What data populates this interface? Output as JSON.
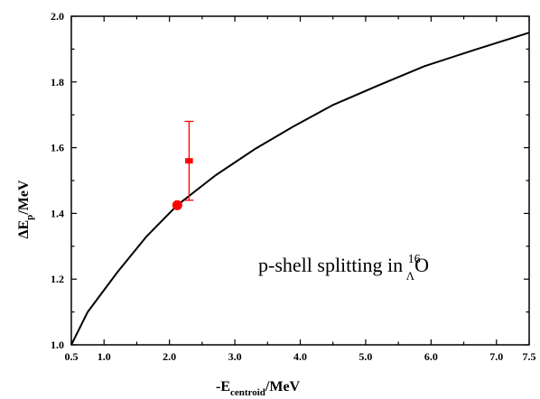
{
  "chart_data": {
    "type": "line",
    "xlabel": {
      "main": "-E",
      "sub": "centroid",
      "unit": "/MeV"
    },
    "ylabel": {
      "main": "ΔE",
      "sub": "p",
      "unit": "/MeV"
    },
    "xlim": [
      0.5,
      7.5
    ],
    "ylim": [
      1.0,
      2.0
    ],
    "x_ticks": [
      0.5,
      1.0,
      2.0,
      3.0,
      4.0,
      5.0,
      6.0,
      7.0,
      7.5
    ],
    "x_tick_labels": [
      "0.5",
      "1.0",
      "2.0",
      "3.0",
      "4.0",
      "5.0",
      "6.0",
      "7.0",
      "7.5"
    ],
    "y_ticks": [
      1.0,
      1.2,
      1.4,
      1.6,
      1.8,
      2.0
    ],
    "y_tick_labels": [
      "1.0",
      "1.2",
      "1.4",
      "1.6",
      "1.8",
      "2.0"
    ],
    "x_minor_step": 0.5,
    "y_minor_step": 0.1,
    "series": [
      {
        "kind": "line",
        "color": "#000000",
        "x": [
          0.5,
          0.75,
          1.2,
          1.65,
          2.12,
          2.7,
          3.3,
          3.9,
          4.5,
          5.2,
          5.9,
          6.7,
          7.5
        ],
        "y": [
          1.0,
          1.1,
          1.22,
          1.33,
          1.425,
          1.515,
          1.595,
          1.665,
          1.73,
          1.79,
          1.848,
          1.9,
          1.95
        ]
      },
      {
        "kind": "marker",
        "color": "#ff0000",
        "x": [
          2.12
        ],
        "y": [
          1.425
        ]
      },
      {
        "kind": "errorbar",
        "color": "#ff0000",
        "x": 2.3,
        "y": 1.56,
        "xerr": 0.05,
        "yerr_low": 0.12,
        "yerr_high": 0.12
      }
    ],
    "annotation": {
      "prefix": "p-shell splitting in ",
      "sup": "16",
      "sub": "Λ",
      "element": "O"
    }
  }
}
